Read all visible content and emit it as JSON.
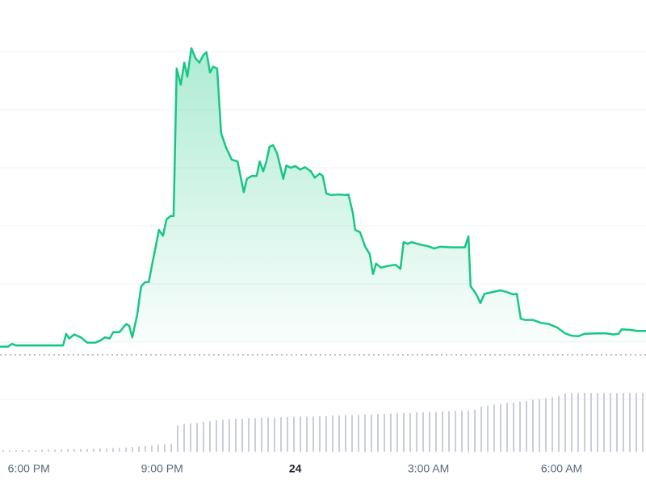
{
  "chart_data": [
    {
      "type": "area",
      "color": "#16c784",
      "x": [
        17.35,
        17.53,
        17.62,
        17.71,
        18.62,
        18.77,
        18.84,
        18.91,
        19.02,
        19.17,
        19.31,
        19.5,
        19.62,
        19.71,
        19.82,
        19.9,
        20.04,
        20.19,
        20.26,
        20.33,
        20.44,
        20.53,
        20.62,
        20.7,
        20.77,
        20.84,
        20.93,
        21.02,
        21.1,
        21.19,
        21.26,
        21.33,
        21.42,
        21.5,
        21.57,
        21.66,
        21.75,
        21.84,
        21.93,
        22.0,
        22.08,
        22.15,
        22.24,
        22.33,
        22.44,
        22.57,
        22.7,
        22.84,
        22.91,
        23.02,
        23.13,
        23.2,
        23.28,
        23.35,
        23.42,
        23.5,
        23.59,
        23.68,
        23.73,
        23.8,
        23.9,
        24.0,
        24.11,
        24.22,
        24.35,
        24.44,
        24.55,
        24.62,
        24.7,
        24.8,
        24.99,
        25.13,
        25.2,
        25.3,
        25.35,
        25.46,
        25.57,
        25.68,
        25.75,
        25.82,
        25.93,
        26.08,
        26.26,
        26.37,
        26.44,
        26.53,
        26.62,
        26.8,
        26.99,
        27.13,
        27.26,
        27.53,
        27.82,
        27.9,
        27.95,
        28.08,
        28.17,
        28.26,
        28.44,
        28.62,
        28.77,
        28.91,
        28.99,
        29.08,
        29.17,
        29.35,
        29.53,
        29.71,
        29.9,
        30.08,
        30.22,
        30.37,
        30.51,
        30.8,
        30.99,
        31.17,
        31.28,
        31.35,
        31.53,
        31.71,
        31.9
      ],
      "values": [
        -0.08,
        -0.08,
        -0.03,
        -0.06,
        -0.06,
        -0.06,
        0.14,
        0.06,
        0.13,
        0.08,
        -0.01,
        -0.01,
        0.03,
        0.08,
        0.06,
        0.17,
        0.17,
        0.31,
        0.28,
        0.08,
        0.47,
        0.96,
        1.03,
        1.03,
        1.31,
        1.58,
        1.93,
        1.83,
        2.11,
        2.17,
        2.17,
        4.71,
        4.43,
        4.81,
        4.57,
        5.06,
        4.89,
        4.81,
        4.94,
        4.99,
        4.64,
        4.74,
        4.71,
        3.6,
        3.35,
        3.14,
        3.11,
        2.58,
        2.81,
        2.86,
        2.86,
        3.11,
        2.94,
        3.11,
        3.36,
        3.39,
        3.25,
        2.97,
        2.81,
        3.04,
        3.0,
        3.03,
        2.97,
        3.01,
        2.94,
        2.83,
        2.9,
        2.86,
        2.56,
        2.53,
        2.54,
        2.53,
        2.54,
        2.21,
        1.93,
        1.89,
        1.65,
        1.51,
        1.17,
        1.35,
        1.28,
        1.31,
        1.33,
        1.26,
        1.72,
        1.69,
        1.72,
        1.68,
        1.65,
        1.61,
        1.64,
        1.63,
        1.63,
        1.82,
        0.96,
        0.82,
        0.67,
        0.83,
        0.86,
        0.89,
        0.86,
        0.82,
        0.83,
        0.4,
        0.38,
        0.38,
        0.33,
        0.31,
        0.25,
        0.15,
        0.11,
        0.1,
        0.14,
        0.15,
        0.15,
        0.13,
        0.14,
        0.22,
        0.21,
        0.19,
        0.19
      ],
      "xlim": [
        17.35,
        31.9
      ],
      "xticks": [
        {
          "value": 18,
          "label": "6:00 PM"
        },
        {
          "value": 21,
          "label": "9:00 PM"
        },
        24,
        {
          "value": 27,
          "label": "3:00 AM"
        },
        {
          "value": 30,
          "label": "6:00 AM"
        }
      ],
      "ylim": [
        -0.5,
        5.5
      ],
      "yticks": [
        0,
        1,
        2,
        3,
        4,
        5
      ],
      "grid": true,
      "reference": -0.22
    },
    {
      "type": "bar",
      "color": "#c9cddc",
      "categories": [
        null,
        null,
        null,
        null,
        null,
        null,
        null,
        null,
        null,
        null,
        null,
        null,
        null,
        null,
        null,
        null,
        null,
        null,
        null,
        null,
        null,
        null,
        null,
        null,
        null,
        null,
        null,
        null,
        null,
        null,
        null,
        null,
        null,
        null,
        null,
        null,
        null,
        null,
        null,
        null,
        null,
        null,
        null,
        null,
        null,
        null,
        null,
        null,
        null,
        null,
        null,
        null,
        null,
        null,
        null,
        null,
        null,
        null,
        null,
        null,
        null,
        null,
        null,
        null,
        null,
        null,
        null,
        null,
        null,
        null,
        null,
        null,
        null,
        null,
        null,
        null,
        null,
        null,
        null,
        null,
        null,
        null,
        null,
        null,
        null,
        null,
        null,
        null,
        null,
        null,
        null,
        null,
        null,
        null,
        null,
        null,
        null,
        null,
        null,
        null
      ],
      "values": [
        3,
        3,
        3,
        3,
        3,
        3,
        4,
        4,
        4,
        4,
        5,
        5,
        5,
        5,
        6,
        6,
        6,
        7,
        7,
        8,
        9,
        10,
        11,
        12,
        13,
        14,
        15,
        50,
        53,
        54,
        55,
        57,
        58,
        60,
        61,
        62,
        63,
        63,
        64,
        64,
        65,
        65,
        65,
        66,
        66,
        66,
        67,
        67,
        67,
        68,
        68,
        69,
        69,
        70,
        70,
        70,
        71,
        71,
        72,
        72,
        73,
        73,
        74,
        74,
        75,
        75,
        76,
        76,
        77,
        77,
        78,
        78,
        79,
        80,
        86,
        88,
        90,
        91,
        93,
        94,
        96,
        97,
        99,
        100,
        102,
        104,
        106,
        111,
        112,
        112,
        112,
        112,
        112,
        112,
        112,
        112,
        112,
        112,
        112,
        112
      ],
      "ylim": [
        0,
        120
      ],
      "yticks": [
        100
      ],
      "grid": true
    }
  ]
}
